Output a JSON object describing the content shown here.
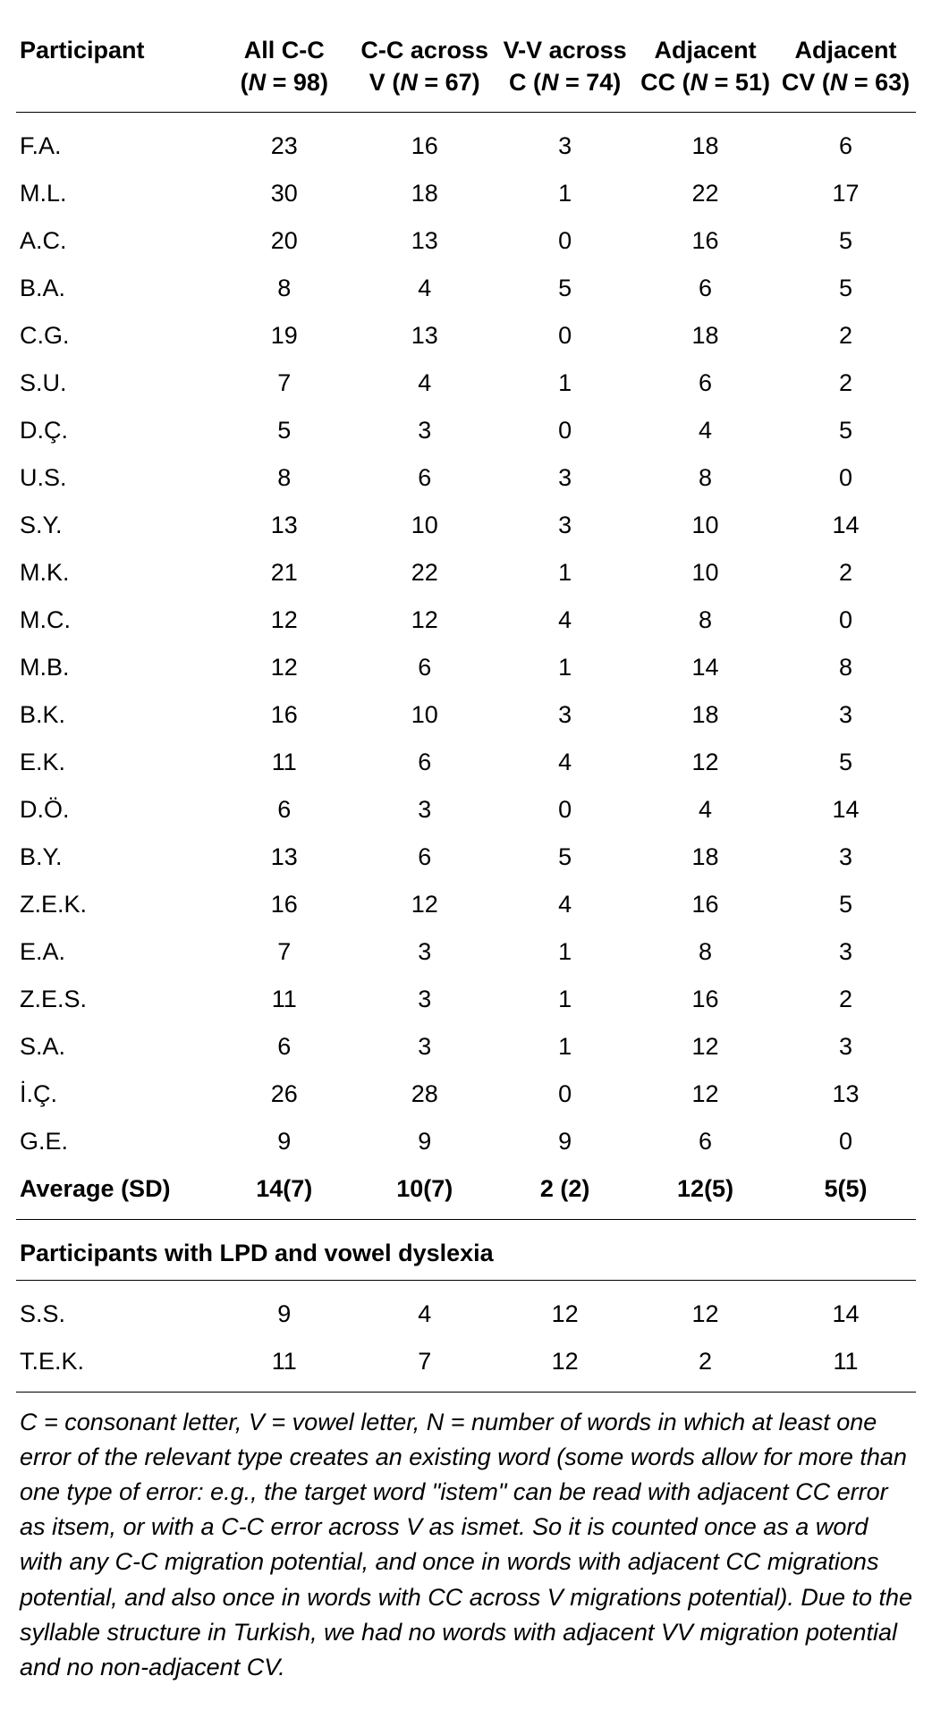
{
  "header": {
    "col0": "Participant",
    "cols": [
      {
        "line1": "All C-C",
        "n": "(N = 98)"
      },
      {
        "line1": "C-C across",
        "line2": "V",
        "n": "(N = 67)"
      },
      {
        "line1": "V-V across",
        "line2": "C",
        "n": "(N = 74)"
      },
      {
        "line1": "Adjacent",
        "line2": "CC",
        "n": "(N = 51)"
      },
      {
        "line1": "Adjacent",
        "line2": "CV",
        "n": "(N = 63)"
      }
    ]
  },
  "rows": [
    {
      "p": "F.A.",
      "v": [
        "23",
        "16",
        "3",
        "18",
        "6"
      ]
    },
    {
      "p": "M.L.",
      "v": [
        "30",
        "18",
        "1",
        "22",
        "17"
      ]
    },
    {
      "p": "A.C.",
      "v": [
        "20",
        "13",
        "0",
        "16",
        "5"
      ]
    },
    {
      "p": "B.A.",
      "v": [
        "8",
        "4",
        "5",
        "6",
        "5"
      ]
    },
    {
      "p": "C.G.",
      "v": [
        "19",
        "13",
        "0",
        "18",
        "2"
      ]
    },
    {
      "p": "S.U.",
      "v": [
        "7",
        "4",
        "1",
        "6",
        "2"
      ]
    },
    {
      "p": "D.Ç.",
      "v": [
        "5",
        "3",
        "0",
        "4",
        "5"
      ]
    },
    {
      "p": "U.S.",
      "v": [
        "8",
        "6",
        "3",
        "8",
        "0"
      ]
    },
    {
      "p": "S.Y.",
      "v": [
        "13",
        "10",
        "3",
        "10",
        "14"
      ]
    },
    {
      "p": "M.K.",
      "v": [
        "21",
        "22",
        "1",
        "10",
        "2"
      ]
    },
    {
      "p": "M.C.",
      "v": [
        "12",
        "12",
        "4",
        "8",
        "0"
      ]
    },
    {
      "p": "M.B.",
      "v": [
        "12",
        "6",
        "1",
        "14",
        "8"
      ]
    },
    {
      "p": "B.K.",
      "v": [
        "16",
        "10",
        "3",
        "18",
        "3"
      ]
    },
    {
      "p": "E.K.",
      "v": [
        "11",
        "6",
        "4",
        "12",
        "5"
      ]
    },
    {
      "p": "D.Ö.",
      "v": [
        "6",
        "3",
        "0",
        "4",
        "14"
      ]
    },
    {
      "p": "B.Y.",
      "v": [
        "13",
        "6",
        "5",
        "18",
        "3"
      ]
    },
    {
      "p": "Z.E.K.",
      "v": [
        "16",
        "12",
        "4",
        "16",
        "5"
      ]
    },
    {
      "p": "E.A.",
      "v": [
        "7",
        "3",
        "1",
        "8",
        "3"
      ]
    },
    {
      "p": "Z.E.S.",
      "v": [
        "11",
        "3",
        "1",
        "16",
        "2"
      ]
    },
    {
      "p": "S.A.",
      "v": [
        "6",
        "3",
        "1",
        "12",
        "3"
      ]
    },
    {
      "p": "İ.Ç.",
      "v": [
        "26",
        "28",
        "0",
        "12",
        "13"
      ]
    },
    {
      "p": "G.E.",
      "v": [
        "9",
        "9",
        "9",
        "6",
        "0"
      ]
    }
  ],
  "avg": {
    "label": "Average (SD)",
    "v": [
      "14(7)",
      "10(7)",
      "2 (2)",
      "12(5)",
      "5(5)"
    ]
  },
  "section2_title": "Participants with LPD and vowel dyslexia",
  "rows2": [
    {
      "p": "S.S.",
      "v": [
        "9",
        "4",
        "12",
        "12",
        "14"
      ]
    },
    {
      "p": "T.E.K.",
      "v": [
        "11",
        "7",
        "12",
        "2",
        "11"
      ]
    }
  ],
  "footnote_parts": {
    "a": "C = consonant letter, V = vowel letter, N = number of words in which at least one error of the relevant type creates an existing word (some words allow for more than one type of error: e.g., the target word \"istem\" can be read with adjacent CC error as itsem, or with a C-C error across V as ismet. So it is counted once as a word with any C-C migration potential, and once in words with adjacent CC migrations potential, and also once in words with CC across V migrations potential). Due to the syllable structure in Turkish, we had no words with adjacent VV migration potential and no non-adjacent CV."
  }
}
